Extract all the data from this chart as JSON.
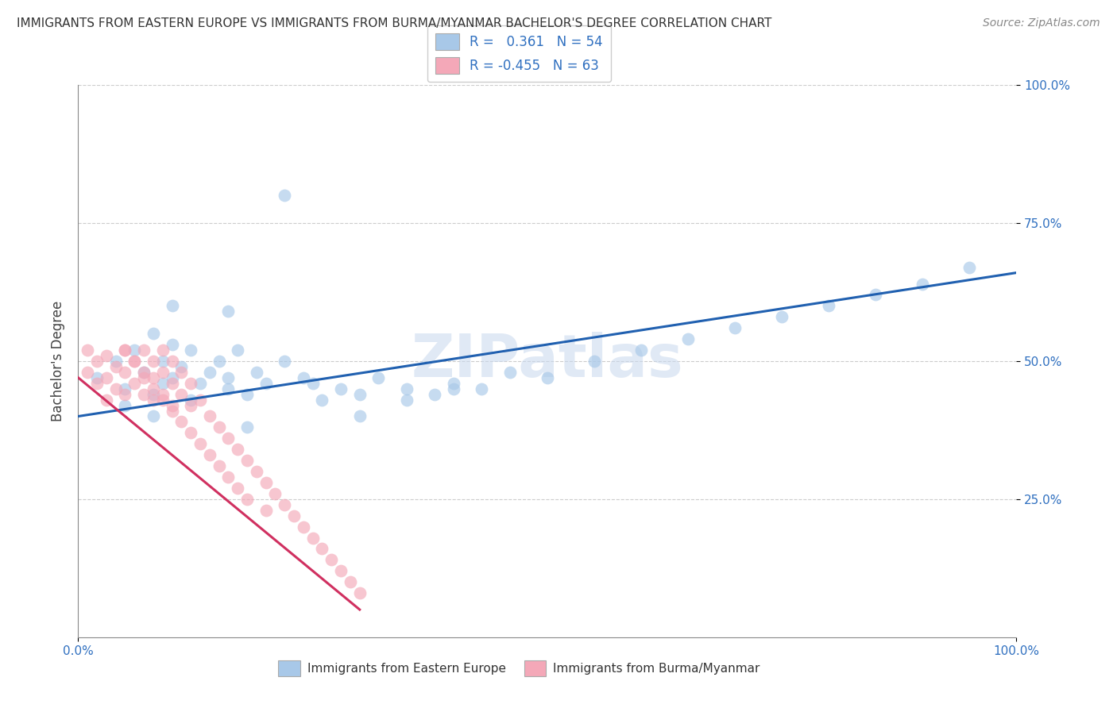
{
  "title": "IMMIGRANTS FROM EASTERN EUROPE VS IMMIGRANTS FROM BURMA/MYANMAR BACHELOR'S DEGREE CORRELATION CHART",
  "source_text": "Source: ZipAtlas.com",
  "ylabel": "Bachelor's Degree",
  "watermark": "ZIPatlas",
  "xlim": [
    0,
    100
  ],
  "ylim": [
    0,
    100
  ],
  "blue_color": "#a8c8e8",
  "pink_color": "#f4a8b8",
  "blue_line_color": "#2060b0",
  "pink_line_color": "#d03060",
  "blue_scatter_x": [
    2,
    4,
    5,
    6,
    7,
    8,
    8,
    9,
    9,
    10,
    10,
    11,
    12,
    13,
    14,
    15,
    16,
    16,
    17,
    18,
    19,
    20,
    22,
    24,
    26,
    28,
    30,
    32,
    35,
    38,
    40,
    43,
    46,
    50,
    55,
    60,
    65,
    70,
    75,
    80,
    85,
    90,
    95,
    5,
    8,
    12,
    18,
    25,
    30,
    35,
    40,
    22,
    16,
    10
  ],
  "blue_scatter_y": [
    47,
    50,
    45,
    52,
    48,
    44,
    55,
    50,
    46,
    47,
    53,
    49,
    52,
    46,
    48,
    50,
    47,
    45,
    52,
    44,
    48,
    46,
    50,
    47,
    43,
    45,
    44,
    47,
    45,
    44,
    46,
    45,
    48,
    47,
    50,
    52,
    54,
    56,
    58,
    60,
    62,
    64,
    67,
    42,
    40,
    43,
    38,
    46,
    40,
    43,
    45,
    80,
    59,
    60
  ],
  "pink_scatter_x": [
    1,
    1,
    2,
    2,
    3,
    3,
    3,
    4,
    4,
    5,
    5,
    5,
    6,
    6,
    7,
    7,
    7,
    8,
    8,
    8,
    9,
    9,
    9,
    10,
    10,
    10,
    11,
    11,
    12,
    12,
    13,
    14,
    15,
    16,
    17,
    18,
    19,
    20,
    21,
    22,
    23,
    24,
    25,
    26,
    27,
    28,
    29,
    30,
    5,
    6,
    7,
    8,
    9,
    10,
    11,
    12,
    13,
    14,
    15,
    16,
    17,
    18,
    20
  ],
  "pink_scatter_y": [
    52,
    48,
    50,
    46,
    51,
    47,
    43,
    49,
    45,
    52,
    48,
    44,
    50,
    46,
    48,
    44,
    52,
    47,
    43,
    50,
    48,
    44,
    52,
    46,
    50,
    42,
    48,
    44,
    46,
    42,
    43,
    40,
    38,
    36,
    34,
    32,
    30,
    28,
    26,
    24,
    22,
    20,
    18,
    16,
    14,
    12,
    10,
    8,
    52,
    50,
    47,
    45,
    43,
    41,
    39,
    37,
    35,
    33,
    31,
    29,
    27,
    25,
    23
  ],
  "blue_line_x0": 0,
  "blue_line_x1": 100,
  "blue_line_y0": 40,
  "blue_line_y1": 66,
  "pink_line_x0": 0,
  "pink_line_x1": 30,
  "pink_line_y0": 47,
  "pink_line_y1": 5
}
